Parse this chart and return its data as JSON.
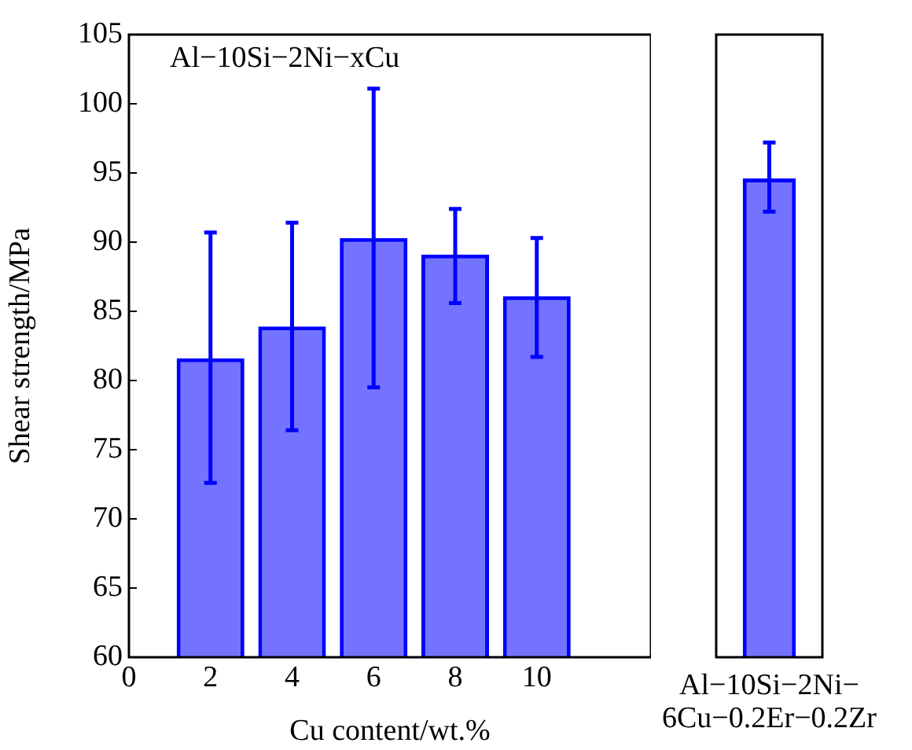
{
  "chart_data": [
    {
      "type": "bar",
      "x": [
        2,
        4,
        6,
        8,
        10
      ],
      "values": [
        81.6,
        83.9,
        90.3,
        89.1,
        86.1
      ],
      "color": "#0000ff",
      "errors": [
        [
          72.6,
          90.7
        ],
        [
          76.4,
          91.4
        ],
        [
          79.5,
          101.1
        ],
        [
          85.6,
          92.4
        ],
        [
          81.7,
          90.3
        ]
      ],
      "xlim": [
        0,
        12.8
      ],
      "xticks": [
        0,
        2,
        4,
        6,
        8,
        10
      ],
      "ylim": [
        60,
        105
      ],
      "yticks": [
        60,
        65,
        70,
        75,
        80,
        85,
        90,
        95,
        100,
        105
      ],
      "xlabel": "Cu content/wt.%",
      "ylabel": "Shear strength/MPa",
      "annotations": [
        "Al−10Si−2Ni−xCu"
      ],
      "grid": false,
      "legend": false
    },
    {
      "type": "bar",
      "categories": [
        "Al−10Si−2Ni−6Cu−0.2Er−0.2Zr"
      ],
      "values": [
        94.6
      ],
      "color": "#0000ff",
      "errors": [
        [
          92.2,
          97.2
        ]
      ],
      "ylim": [
        60,
        105
      ],
      "yticks": [
        60,
        65,
        70,
        75,
        80,
        85,
        90,
        95,
        100,
        105
      ],
      "tick_labels": "x",
      "grid": false,
      "legend": false
    }
  ]
}
